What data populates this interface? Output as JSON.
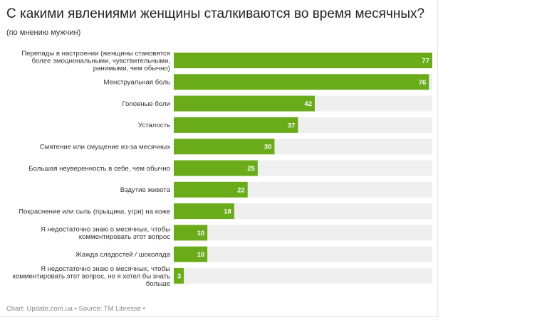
{
  "header": {
    "title": "С какими явлениями женщины сталкиваются во время месячных?",
    "subtitle": "(по мнению мужчин)"
  },
  "footer": {
    "source": "Chart: Update.com.ua • Source: TM Libresse •"
  },
  "colors": {
    "bar": "#6aab1a",
    "track": "#efefef",
    "value_text": "#ffffff"
  },
  "chart_data": {
    "type": "bar",
    "orientation": "horizontal",
    "title": "С какими явлениями женщины сталкиваются во время месячных?",
    "subtitle": "(по мнению мужчин)",
    "categories": [
      [
        "Перепады в настроении (женщины становятся",
        "более эмоциональными, чувствительными,",
        "ранимыми, чем обычно)"
      ],
      [
        "Менструальная боль"
      ],
      [
        "Головные боли"
      ],
      [
        "Усталость"
      ],
      [
        "Смятение или смущение из-за месячных"
      ],
      [
        "Большая неуверенность в себе, чем обычно"
      ],
      [
        "Вздутие живота"
      ],
      [
        "Покраснение или сыпь (прыщики, угри) на коже"
      ],
      [
        "Я недостаточно знаю о месячных, чтобы",
        "комментировать этот вопрос"
      ],
      [
        "Жажда сладостей / шоколада"
      ],
      [
        "Я недостаточно знаю о месячных, чтобы",
        "комментировать этот вопрос, но я хотел бы знать",
        "больше"
      ]
    ],
    "values": [
      77,
      76,
      42,
      37,
      30,
      25,
      22,
      18,
      10,
      10,
      3
    ],
    "xlim": [
      0,
      77
    ],
    "data_labels": true,
    "grid": false,
    "legend": "none"
  }
}
